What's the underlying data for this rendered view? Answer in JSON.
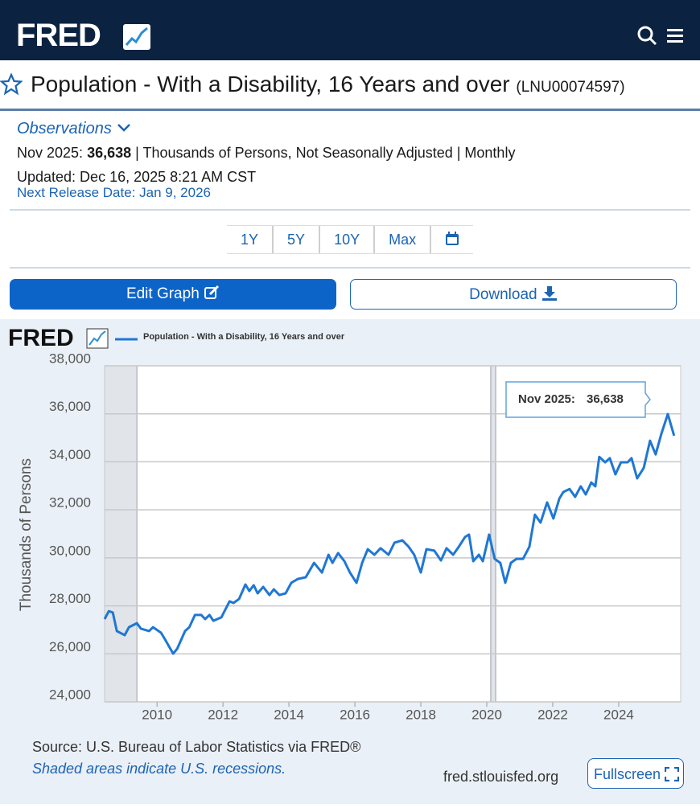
{
  "header": {
    "logo": "FRED"
  },
  "series": {
    "title": "Population - With a Disability, 16 Years and over",
    "id": "(LNU00074597)"
  },
  "observations": {
    "label": "Observations",
    "period": "Nov 2025:",
    "value": "36,638",
    "units": "| Thousands of Persons, Not Seasonally Adjusted | Monthly",
    "updated": "Updated: Dec 16, 2025 8:21 AM CST",
    "next_release": "Next Release Date: Jan 9, 2026"
  },
  "ranges": [
    "1Y",
    "5Y",
    "10Y",
    "Max"
  ],
  "buttons": {
    "edit": "Edit Graph",
    "download": "Download"
  },
  "chart_data": {
    "type": "line",
    "logo": "FRED",
    "y_label": "Thousands of Persons",
    "grid": true,
    "tooltip": {
      "label": "Nov 2025:",
      "value": "36,638"
    },
    "recessions": [
      [
        2008.41,
        2009.39
      ],
      [
        2020.12,
        2020.27
      ]
    ],
    "xlim": [
      2008.41,
      2025.88
    ],
    "xticks": [
      2010,
      2012,
      2014,
      2016,
      2018,
      2020,
      2022,
      2024
    ],
    "ylim": [
      24000,
      38000
    ],
    "yticks": [
      {
        "value": 24000,
        "label": "24,000"
      },
      {
        "value": 26000,
        "label": "26,000"
      },
      {
        "value": 28000,
        "label": "28,000"
      },
      {
        "value": 30000,
        "label": "30,000"
      },
      {
        "value": 32000,
        "label": "32,000"
      },
      {
        "value": 34000,
        "label": "34,000"
      },
      {
        "value": 36000,
        "label": "36,000"
      },
      {
        "value": 38000,
        "label": "38,000"
      }
    ],
    "x": [
      2008.41,
      2008.54,
      2008.66,
      2008.78,
      2009.02,
      2009.15,
      2009.39,
      2009.51,
      2009.76,
      2009.88,
      2010.12,
      2010.24,
      2010.49,
      2010.61,
      2010.85,
      2010.98,
      2011.15,
      2011.34,
      2011.46,
      2011.59,
      2011.71,
      2011.95,
      2012.2,
      2012.32,
      2012.49,
      2012.68,
      2012.8,
      2012.93,
      2013.05,
      2013.22,
      2013.41,
      2013.54,
      2013.71,
      2013.9,
      2014.07,
      2014.27,
      2014.51,
      2014.76,
      2015.0,
      2015.2,
      2015.32,
      2015.49,
      2015.68,
      2015.85,
      2016.05,
      2016.22,
      2016.39,
      2016.59,
      2016.78,
      2017.02,
      2017.2,
      2017.44,
      2017.63,
      2017.8,
      2018.0,
      2018.17,
      2018.41,
      2018.61,
      2018.78,
      2018.98,
      2019.15,
      2019.34,
      2019.46,
      2019.59,
      2019.76,
      2019.88,
      2020.07,
      2020.24,
      2020.41,
      2020.56,
      2020.73,
      2020.9,
      2021.1,
      2021.29,
      2021.46,
      2021.63,
      2021.83,
      2022.02,
      2022.2,
      2022.32,
      2022.51,
      2022.68,
      2022.85,
      2023.0,
      2023.17,
      2023.29,
      2023.41,
      2023.59,
      2023.73,
      2023.9,
      2024.07,
      2024.27,
      2024.39,
      2024.56,
      2024.76,
      2024.95,
      2025.12,
      2025.29,
      2025.49,
      2025.68
    ],
    "series": [
      {
        "name": "Population - With a Disability, 16 Years and over",
        "color": "#1f77d4",
        "values": [
          27450,
          27780,
          27720,
          26950,
          26780,
          27110,
          27280,
          27050,
          26950,
          27110,
          26880,
          26610,
          26010,
          26210,
          26950,
          27110,
          27620,
          27620,
          27450,
          27620,
          27380,
          27520,
          28190,
          28120,
          28290,
          28890,
          28620,
          28860,
          28520,
          28790,
          28450,
          28690,
          28450,
          28520,
          28960,
          29120,
          29190,
          29790,
          29390,
          30130,
          29790,
          30200,
          29860,
          29390,
          28960,
          29790,
          30360,
          30130,
          30400,
          30130,
          30630,
          30730,
          30460,
          30130,
          29390,
          30360,
          30300,
          29890,
          30400,
          30130,
          30460,
          30870,
          30970,
          29860,
          30130,
          29860,
          30970,
          29960,
          29790,
          28960,
          29790,
          29960,
          29960,
          30460,
          31800,
          31470,
          32310,
          31640,
          32470,
          32740,
          32870,
          32540,
          32980,
          32640,
          33140,
          32980,
          34210,
          33980,
          34150,
          33480,
          33980,
          33980,
          34150,
          33310,
          33750,
          34880,
          34310,
          35150,
          35990,
          35090
        ]
      }
    ]
  },
  "footer": {
    "source": "Source: U.S. Bureau of Labor Statistics via FRED®",
    "note": "Shaded areas indicate U.S. recessions.",
    "url": "fred.stlouisfed.org",
    "fullscreen": "Fullscreen"
  }
}
